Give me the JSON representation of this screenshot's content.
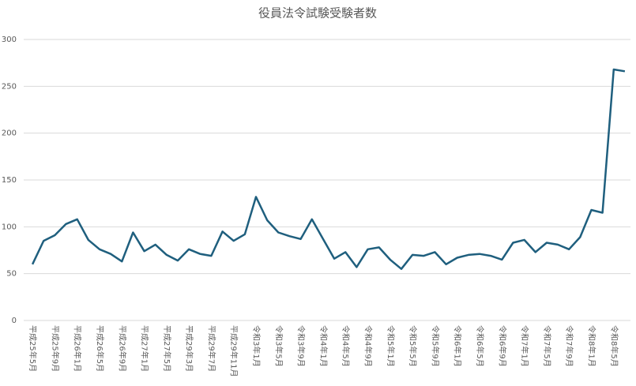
{
  "chart_data": {
    "type": "line",
    "title": "役員法令試験受験者数",
    "categories": [
      "平成25年5月",
      null,
      "平成25年9月",
      null,
      "平成26年1月",
      null,
      "平成26年5月",
      null,
      "平成26年9月",
      null,
      "平成27年1月",
      null,
      "平成27年5月",
      null,
      "平成29年3月",
      null,
      "平成29年7月",
      null,
      "平成29年11月",
      null,
      "令和3年1月",
      null,
      "令和3年5月",
      null,
      "令和3年9月",
      null,
      "令和4年1月",
      null,
      "令和4年5月",
      null,
      "令和4年9月",
      null,
      "令和5年1月",
      null,
      "令和5年5月",
      null,
      "令和5年9月",
      null,
      "令和6年1月",
      null,
      "令和6年5月",
      null,
      "令和6年9月",
      null,
      "令和7年1月",
      null,
      "令和7年5月",
      null,
      "令和7年9月",
      null,
      "令和8年1月",
      null,
      "令和8年5月",
      null
    ],
    "series": [
      {
        "name": "受験者数",
        "color": "#1f5f7e",
        "values": [
          60,
          85,
          91,
          103,
          108,
          86,
          76,
          71,
          63,
          94,
          74,
          81,
          70,
          64,
          76,
          71,
          69,
          95,
          85,
          92,
          132,
          107,
          94,
          90,
          87,
          108,
          87,
          66,
          73,
          57,
          76,
          78,
          65,
          55,
          70,
          69,
          73,
          60,
          67,
          70,
          71,
          69,
          65,
          83,
          86,
          73,
          83,
          81,
          76,
          89,
          118,
          115,
          268,
          266
        ]
      }
    ],
    "ylim": [
      0,
      300
    ],
    "yticks": [
      0,
      50,
      100,
      150,
      200,
      250,
      300
    ],
    "grid": true
  }
}
